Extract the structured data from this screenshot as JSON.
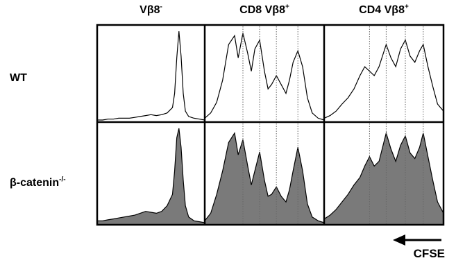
{
  "chart_data": {
    "type": "histogram-grid",
    "columns": [
      {
        "label": "Vβ8",
        "superscript": "-"
      },
      {
        "label": "CD8 Vβ8",
        "superscript": "+"
      },
      {
        "label": "CD4 Vβ8",
        "superscript": "+"
      }
    ],
    "rows": [
      {
        "label": "WT",
        "superscript": "",
        "filled": false
      },
      {
        "label": "β-catenin",
        "superscript": "-/-",
        "filled": true
      }
    ],
    "x_axis": {
      "label": "CFSE",
      "arrow_direction": "left",
      "range": [
        0,
        1
      ]
    },
    "y_axis": {
      "range": [
        0,
        1
      ]
    },
    "panels": [
      {
        "row": 0,
        "col": 0,
        "guide_lines": [],
        "x": [
          0.0,
          0.05,
          0.1,
          0.15,
          0.2,
          0.25,
          0.3,
          0.35,
          0.4,
          0.45,
          0.5,
          0.55,
          0.6,
          0.65,
          0.7,
          0.72,
          0.74,
          0.76,
          0.78,
          0.8,
          0.82,
          0.85,
          0.9,
          0.95,
          1.0
        ],
        "y": [
          0.0,
          0.0,
          0.01,
          0.01,
          0.02,
          0.02,
          0.02,
          0.03,
          0.04,
          0.05,
          0.06,
          0.05,
          0.06,
          0.08,
          0.14,
          0.3,
          0.7,
          1.0,
          0.72,
          0.3,
          0.1,
          0.04,
          0.02,
          0.01,
          0.0
        ]
      },
      {
        "row": 0,
        "col": 1,
        "guide_lines": [
          0.32,
          0.46,
          0.6,
          0.78
        ],
        "x": [
          0.0,
          0.05,
          0.1,
          0.15,
          0.2,
          0.25,
          0.28,
          0.32,
          0.36,
          0.39,
          0.42,
          0.46,
          0.5,
          0.53,
          0.56,
          0.6,
          0.64,
          0.68,
          0.71,
          0.74,
          0.78,
          0.82,
          0.86,
          0.9,
          0.95,
          1.0
        ],
        "y": [
          0.02,
          0.08,
          0.2,
          0.45,
          0.85,
          0.95,
          0.7,
          0.98,
          0.75,
          0.55,
          0.8,
          0.9,
          0.55,
          0.35,
          0.4,
          0.5,
          0.4,
          0.3,
          0.45,
          0.65,
          0.78,
          0.6,
          0.25,
          0.08,
          0.02,
          0.0
        ]
      },
      {
        "row": 0,
        "col": 2,
        "guide_lines": [
          0.38,
          0.52,
          0.68,
          0.83
        ],
        "x": [
          0.0,
          0.05,
          0.1,
          0.15,
          0.2,
          0.25,
          0.3,
          0.34,
          0.38,
          0.42,
          0.46,
          0.52,
          0.56,
          0.6,
          0.64,
          0.68,
          0.72,
          0.76,
          0.8,
          0.83,
          0.87,
          0.91,
          0.95,
          1.0
        ],
        "y": [
          0.02,
          0.05,
          0.1,
          0.18,
          0.25,
          0.35,
          0.5,
          0.6,
          0.55,
          0.5,
          0.6,
          0.85,
          0.7,
          0.6,
          0.8,
          0.9,
          0.72,
          0.65,
          0.78,
          0.85,
          0.6,
          0.38,
          0.18,
          0.1
        ]
      },
      {
        "row": 1,
        "col": 0,
        "guide_lines": [],
        "x": [
          0.0,
          0.05,
          0.1,
          0.15,
          0.2,
          0.25,
          0.3,
          0.35,
          0.4,
          0.45,
          0.5,
          0.55,
          0.6,
          0.65,
          0.7,
          0.72,
          0.74,
          0.76,
          0.78,
          0.8,
          0.82,
          0.85,
          0.9,
          0.95,
          1.0
        ],
        "y": [
          0.02,
          0.02,
          0.03,
          0.04,
          0.05,
          0.06,
          0.07,
          0.08,
          0.1,
          0.12,
          0.11,
          0.1,
          0.12,
          0.18,
          0.3,
          0.55,
          0.9,
          1.0,
          0.8,
          0.45,
          0.18,
          0.06,
          0.02,
          0.01,
          0.0
        ]
      },
      {
        "row": 1,
        "col": 1,
        "guide_lines": [
          0.32,
          0.46,
          0.6,
          0.78
        ],
        "x": [
          0.0,
          0.05,
          0.1,
          0.15,
          0.2,
          0.25,
          0.28,
          0.32,
          0.36,
          0.39,
          0.42,
          0.46,
          0.5,
          0.53,
          0.56,
          0.6,
          0.64,
          0.68,
          0.71,
          0.74,
          0.78,
          0.82,
          0.86,
          0.9,
          0.95,
          1.0
        ],
        "y": [
          0.02,
          0.1,
          0.3,
          0.55,
          0.85,
          0.95,
          0.72,
          0.88,
          0.6,
          0.4,
          0.55,
          0.75,
          0.45,
          0.28,
          0.3,
          0.38,
          0.28,
          0.22,
          0.35,
          0.55,
          0.8,
          0.55,
          0.2,
          0.06,
          0.02,
          0.0
        ]
      },
      {
        "row": 1,
        "col": 2,
        "guide_lines": [
          0.38,
          0.52,
          0.68,
          0.83
        ],
        "x": [
          0.0,
          0.05,
          0.1,
          0.15,
          0.2,
          0.25,
          0.3,
          0.34,
          0.38,
          0.42,
          0.46,
          0.52,
          0.56,
          0.6,
          0.64,
          0.68,
          0.72,
          0.76,
          0.8,
          0.83,
          0.87,
          0.91,
          0.95,
          1.0
        ],
        "y": [
          0.04,
          0.08,
          0.14,
          0.22,
          0.3,
          0.4,
          0.48,
          0.6,
          0.7,
          0.6,
          0.65,
          0.95,
          0.78,
          0.65,
          0.82,
          0.92,
          0.74,
          0.68,
          0.8,
          0.95,
          0.7,
          0.45,
          0.22,
          0.1
        ]
      }
    ]
  },
  "colors": {
    "fill": "#7a7a7a",
    "stroke": "#000000",
    "frame": "#000000",
    "guide": "#666666",
    "background": "#ffffff"
  }
}
